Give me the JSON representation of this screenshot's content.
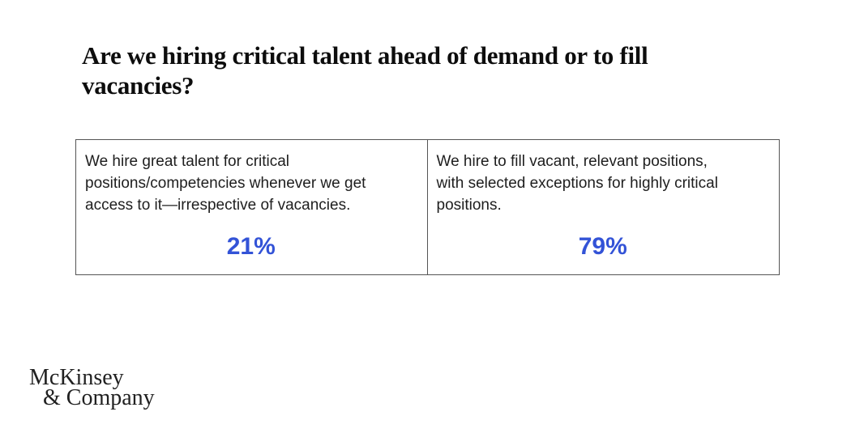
{
  "title": {
    "full": "Are we hiring critical talent ahead of demand or to fill vacancies?",
    "line1": "Are we hiring critical talent ahead of demand or to fill",
    "line2": "vacancies?"
  },
  "table": {
    "cells": [
      {
        "text": "We hire great talent for critical positions/competencies whenever we get access to it—irrespective of vacancies.",
        "lines": [
          "We hire great talent for critical",
          "positions/competencies whenever we get",
          "access to it—irrespective of vacancies."
        ],
        "value": "21%"
      },
      {
        "text": "We hire to fill vacant, relevant positions, with selected exceptions for highly critical positions.",
        "lines": [
          "We hire to fill vacant, relevant positions,",
          "with selected exceptions for highly critical",
          "positions."
        ],
        "value": "79%"
      }
    ]
  },
  "logo": {
    "line1": "McKinsey",
    "line2": "& Company"
  },
  "colors": {
    "accent_blue": "#3353d7",
    "text_primary": "#1e1e1e",
    "title_text": "#0d0d0d",
    "border": "#555555",
    "background": "#ffffff"
  },
  "chart_data": {
    "type": "table",
    "title": "Are we hiring critical talent ahead of demand or to fill vacancies?",
    "categories": [
      "We hire great talent for critical positions/competencies whenever we get access to it—irrespective of vacancies.",
      "We hire to fill vacant, relevant positions, with selected exceptions for highly critical positions."
    ],
    "values": [
      21,
      79
    ],
    "unit": "%"
  }
}
